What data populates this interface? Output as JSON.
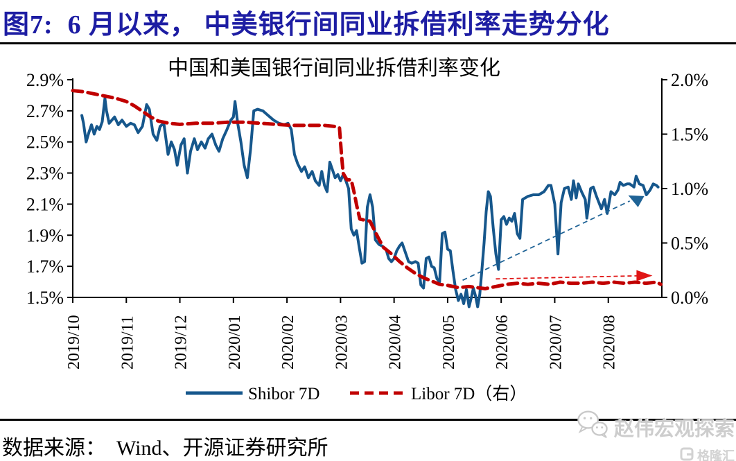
{
  "figure": {
    "title": "图7:  6 月以来， 中美银行间同业拆借利率走势分化"
  },
  "footer": {
    "source": "数据来源：  Wind、开源证券研究所"
  },
  "watermark": {
    "account_name": "赵伟宏观探索",
    "platform_name": "格隆汇",
    "color": "#cdcdcd"
  },
  "chart_data": {
    "type": "line",
    "title": "中国和美国银行间同业拆借利率变化",
    "grid": false,
    "legend_position": "bottom",
    "x_axis": {
      "tick_labels": [
        "2019/10",
        "2019/11",
        "2019/12",
        "2020/01",
        "2020/02",
        "2020/03",
        "2020/04",
        "2020/05",
        "2020/06",
        "2020/07",
        "2020/08"
      ],
      "span_months": 11
    },
    "left_axis": {
      "min": 1.5,
      "max": 2.9,
      "unit": "%",
      "tick_labels": [
        "2.9%",
        "2.7%",
        "2.5%",
        "2.3%",
        "2.1%",
        "1.9%",
        "1.7%",
        "1.5%"
      ]
    },
    "right_axis": {
      "min": 0.0,
      "max": 2.0,
      "unit": "%",
      "tick_labels": [
        "2.0%",
        "1.5%",
        "1.0%",
        "0.5%",
        "0.0%"
      ]
    },
    "series": [
      {
        "name": "Shibor 7D",
        "axis": "left",
        "color": "#16578C",
        "style": "solid",
        "points": [
          [
            0.17,
            2.67
          ],
          [
            0.2,
            2.62
          ],
          [
            0.25,
            2.5
          ],
          [
            0.3,
            2.56
          ],
          [
            0.35,
            2.61
          ],
          [
            0.4,
            2.55
          ],
          [
            0.45,
            2.6
          ],
          [
            0.5,
            2.58
          ],
          [
            0.55,
            2.63
          ],
          [
            0.6,
            2.78
          ],
          [
            0.63,
            2.7
          ],
          [
            0.68,
            2.62
          ],
          [
            0.73,
            2.64
          ],
          [
            0.78,
            2.66
          ],
          [
            0.85,
            2.61
          ],
          [
            0.92,
            2.64
          ],
          [
            1,
            2.6
          ],
          [
            1.08,
            2.62
          ],
          [
            1.15,
            2.61
          ],
          [
            1.22,
            2.56
          ],
          [
            1.3,
            2.6
          ],
          [
            1.38,
            2.74
          ],
          [
            1.43,
            2.71
          ],
          [
            1.5,
            2.55
          ],
          [
            1.57,
            2.51
          ],
          [
            1.63,
            2.6
          ],
          [
            1.7,
            2.62
          ],
          [
            1.78,
            2.42
          ],
          [
            1.84,
            2.5
          ],
          [
            1.9,
            2.45
          ],
          [
            1.95,
            2.35
          ],
          [
            2.02,
            2.48
          ],
          [
            2.08,
            2.52
          ],
          [
            2.14,
            2.3
          ],
          [
            2.2,
            2.44
          ],
          [
            2.27,
            2.52
          ],
          [
            2.33,
            2.45
          ],
          [
            2.4,
            2.5
          ],
          [
            2.47,
            2.46
          ],
          [
            2.53,
            2.52
          ],
          [
            2.6,
            2.55
          ],
          [
            2.67,
            2.48
          ],
          [
            2.73,
            2.44
          ],
          [
            2.8,
            2.52
          ],
          [
            2.88,
            2.58
          ],
          [
            2.95,
            2.64
          ],
          [
            3,
            2.66
          ],
          [
            3.03,
            2.76
          ],
          [
            3.08,
            2.62
          ],
          [
            3.14,
            2.5
          ],
          [
            3.2,
            2.35
          ],
          [
            3.26,
            2.27
          ],
          [
            3.32,
            2.45
          ],
          [
            3.38,
            2.7
          ],
          [
            3.45,
            2.71
          ],
          [
            3.55,
            2.7
          ],
          [
            3.65,
            2.67
          ],
          [
            3.75,
            2.64
          ],
          [
            3.85,
            2.62
          ],
          [
            3.95,
            2.61
          ],
          [
            4.02,
            2.62
          ],
          [
            4.08,
            2.58
          ],
          [
            4.14,
            2.42
          ],
          [
            4.2,
            2.36
          ],
          [
            4.27,
            2.31
          ],
          [
            4.33,
            2.34
          ],
          [
            4.4,
            2.27
          ],
          [
            4.47,
            2.31
          ],
          [
            4.53,
            2.25
          ],
          [
            4.6,
            2.22
          ],
          [
            4.65,
            2.31
          ],
          [
            4.7,
            2.22
          ],
          [
            4.75,
            2.18
          ],
          [
            4.8,
            2.37
          ],
          [
            4.85,
            2.32
          ],
          [
            4.9,
            2.27
          ],
          [
            4.95,
            2.29
          ],
          [
            5,
            2.25
          ],
          [
            5.05,
            2.29
          ],
          [
            5.1,
            2.25
          ],
          [
            5.15,
            2.2
          ],
          [
            5.2,
            1.94
          ],
          [
            5.25,
            1.9
          ],
          [
            5.3,
            1.93
          ],
          [
            5.35,
            1.82
          ],
          [
            5.4,
            1.72
          ],
          [
            5.45,
            1.73
          ],
          [
            5.5,
            2.08
          ],
          [
            5.55,
            2.16
          ],
          [
            5.6,
            2.08
          ],
          [
            5.65,
            1.87
          ],
          [
            5.72,
            1.84
          ],
          [
            5.78,
            1.83
          ],
          [
            5.85,
            1.81
          ],
          [
            5.9,
            1.75
          ],
          [
            5.95,
            1.73
          ],
          [
            6,
            1.75
          ],
          [
            6.05,
            1.8
          ],
          [
            6.1,
            1.83
          ],
          [
            6.15,
            1.85
          ],
          [
            6.2,
            1.8
          ],
          [
            6.27,
            1.73
          ],
          [
            6.33,
            1.72
          ],
          [
            6.4,
            1.73
          ],
          [
            6.45,
            1.72
          ],
          [
            6.5,
            1.58
          ],
          [
            6.55,
            1.56
          ],
          [
            6.6,
            1.75
          ],
          [
            6.65,
            1.76
          ],
          [
            6.7,
            1.7
          ],
          [
            6.75,
            1.69
          ],
          [
            6.8,
            1.62
          ],
          [
            6.85,
            1.6
          ],
          [
            6.9,
            1.91
          ],
          [
            6.95,
            1.92
          ],
          [
            7,
            1.81
          ],
          [
            7.05,
            1.8
          ],
          [
            7.1,
            1.67
          ],
          [
            7.15,
            1.55
          ],
          [
            7.2,
            1.48
          ],
          [
            7.25,
            1.52
          ],
          [
            7.3,
            1.46
          ],
          [
            7.35,
            1.55
          ],
          [
            7.4,
            1.44
          ],
          [
            7.45,
            1.51
          ],
          [
            7.48,
            1.56
          ],
          [
            7.52,
            1.51
          ],
          [
            7.56,
            1.44
          ],
          [
            7.6,
            1.52
          ],
          [
            7.64,
            1.68
          ],
          [
            7.68,
            1.85
          ],
          [
            7.72,
            2.05
          ],
          [
            7.76,
            2.18
          ],
          [
            7.8,
            2.15
          ],
          [
            7.85,
            1.95
          ],
          [
            7.9,
            1.78
          ],
          [
            7.95,
            1.68
          ],
          [
            8,
            2
          ],
          [
            8.05,
            2.02
          ],
          [
            8.1,
            1.97
          ],
          [
            8.15,
            2.01
          ],
          [
            8.2,
            1.99
          ],
          [
            8.25,
            2.04
          ],
          [
            8.3,
            1.91
          ],
          [
            8.35,
            1.88
          ],
          [
            8.4,
            2.13
          ],
          [
            8.5,
            2.15
          ],
          [
            8.6,
            2.16
          ],
          [
            8.7,
            2.16
          ],
          [
            8.8,
            2.18
          ],
          [
            8.88,
            2.22
          ],
          [
            8.93,
            2.22
          ],
          [
            9,
            2.1
          ],
          [
            9.06,
            1.78
          ],
          [
            9.12,
            2.11
          ],
          [
            9.18,
            2.2
          ],
          [
            9.25,
            2.21
          ],
          [
            9.31,
            2.13
          ],
          [
            9.35,
            2.25
          ],
          [
            9.4,
            2.14
          ],
          [
            9.44,
            2.23
          ],
          [
            9.5,
            2.18
          ],
          [
            9.57,
            2.13
          ],
          [
            9.6,
            2.01
          ],
          [
            9.67,
            2.2
          ],
          [
            9.72,
            2.21
          ],
          [
            9.78,
            2.15
          ],
          [
            9.87,
            2.07
          ],
          [
            9.93,
            2.13
          ],
          [
            9.98,
            2.04
          ],
          [
            10.05,
            2.18
          ],
          [
            10.12,
            2.16
          ],
          [
            10.18,
            2.19
          ],
          [
            10.22,
            2.24
          ],
          [
            10.28,
            2.22
          ],
          [
            10.35,
            2.23
          ],
          [
            10.4,
            2.23
          ],
          [
            10.48,
            2.21
          ],
          [
            10.52,
            2.28
          ],
          [
            10.58,
            2.23
          ],
          [
            10.65,
            2.22
          ],
          [
            10.71,
            2.16
          ],
          [
            10.78,
            2.19
          ],
          [
            10.84,
            2.23
          ],
          [
            10.9,
            2.22
          ],
          [
            10.93,
            2.21
          ]
        ]
      },
      {
        "name": "Libor 7D（右）",
        "axis": "right",
        "color": "#C00000",
        "style": "dashed",
        "points": [
          [
            0,
            1.9
          ],
          [
            0.2,
            1.89
          ],
          [
            0.4,
            1.87
          ],
          [
            0.6,
            1.85
          ],
          [
            0.8,
            1.83
          ],
          [
            1,
            1.8
          ],
          [
            1.15,
            1.76
          ],
          [
            1.3,
            1.71
          ],
          [
            1.45,
            1.66
          ],
          [
            1.6,
            1.62
          ],
          [
            1.8,
            1.6
          ],
          [
            2,
            1.59
          ],
          [
            2.3,
            1.6
          ],
          [
            2.6,
            1.6
          ],
          [
            2.9,
            1.61
          ],
          [
            3.2,
            1.61
          ],
          [
            3.5,
            1.6
          ],
          [
            3.8,
            1.59
          ],
          [
            4.1,
            1.58
          ],
          [
            4.4,
            1.58
          ],
          [
            4.7,
            1.58
          ],
          [
            4.9,
            1.57
          ],
          [
            4.98,
            1.56
          ],
          [
            5.02,
            1.3
          ],
          [
            5.05,
            1.14
          ],
          [
            5.12,
            1.08
          ],
          [
            5.2,
            1.08
          ],
          [
            5.26,
            0.95
          ],
          [
            5.3,
            0.85
          ],
          [
            5.36,
            0.72
          ],
          [
            5.45,
            0.71
          ],
          [
            5.55,
            0.7
          ],
          [
            5.6,
            0.65
          ],
          [
            5.7,
            0.55
          ],
          [
            5.8,
            0.46
          ],
          [
            5.95,
            0.4
          ],
          [
            6.1,
            0.33
          ],
          [
            6.25,
            0.27
          ],
          [
            6.4,
            0.22
          ],
          [
            6.55,
            0.18
          ],
          [
            6.7,
            0.15
          ],
          [
            6.85,
            0.12
          ],
          [
            7,
            0.11
          ],
          [
            7.2,
            0.09
          ],
          [
            7.4,
            0.1
          ],
          [
            7.55,
            0.09
          ],
          [
            7.7,
            0.08
          ],
          [
            7.9,
            0.1
          ],
          [
            8.1,
            0.12
          ],
          [
            8.3,
            0.13
          ],
          [
            8.5,
            0.12
          ],
          [
            8.7,
            0.13
          ],
          [
            8.9,
            0.12
          ],
          [
            9.1,
            0.14
          ],
          [
            9.3,
            0.13
          ],
          [
            9.5,
            0.13
          ],
          [
            9.7,
            0.14
          ],
          [
            9.9,
            0.13
          ],
          [
            10.1,
            0.14
          ],
          [
            10.3,
            0.13
          ],
          [
            10.5,
            0.14
          ],
          [
            10.7,
            0.13
          ],
          [
            10.9,
            0.14
          ],
          [
            10.98,
            0.12
          ]
        ]
      }
    ],
    "annotations": [
      {
        "name": "shibor-uptrend-arrow",
        "axis": "left",
        "color": "#1F6396",
        "from": [
          7.28,
          1.61
        ],
        "to": [
          10.4,
          2.12
        ],
        "dash": "7 5",
        "head": "down"
      },
      {
        "name": "libor-flat-arrow",
        "axis": "right",
        "color": "#E01515",
        "from": [
          7.9,
          0.17
        ],
        "to": [
          10.72,
          0.2
        ],
        "dash": "6 4",
        "head": "right"
      }
    ]
  }
}
